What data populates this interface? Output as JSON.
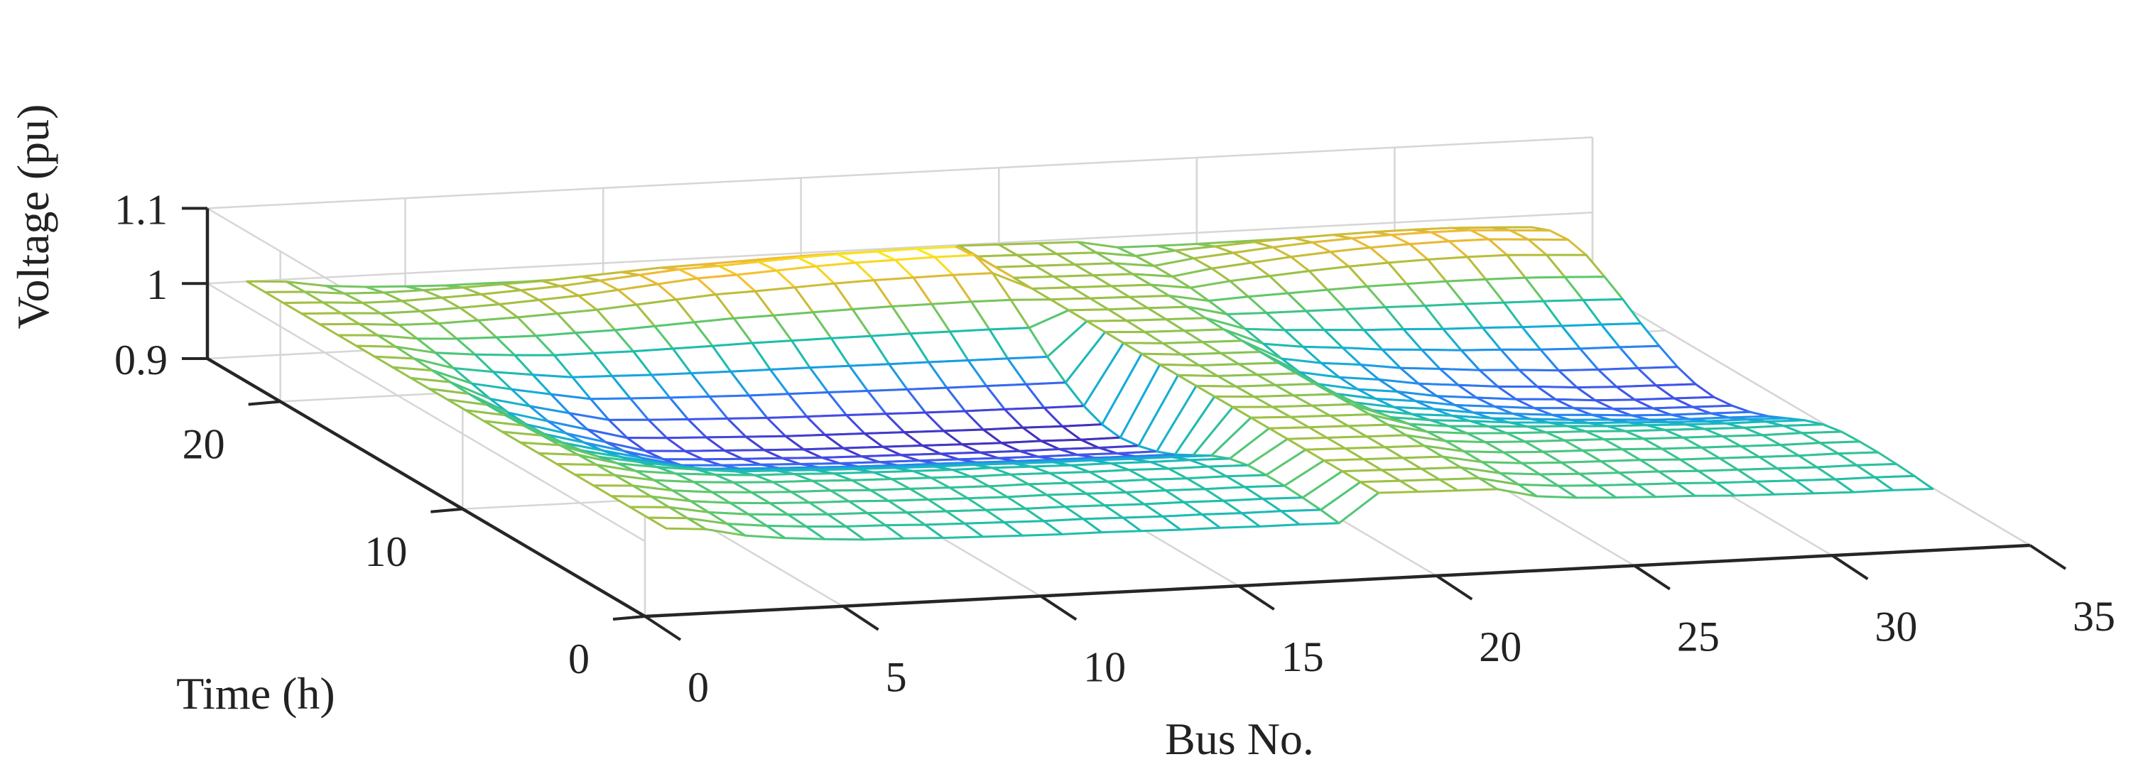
{
  "chart_data": {
    "type": "surface",
    "style": "mesh",
    "colormap": "parula",
    "grid": true,
    "xlabel": "Bus No.",
    "ylabel": "Time (h)",
    "zlabel": "Voltage (pu)",
    "xlim": [
      0,
      35
    ],
    "ylim": [
      0,
      24
    ],
    "zlim": [
      0.9,
      1.1
    ],
    "xticks": [
      "0",
      "5",
      "10",
      "15",
      "20",
      "25",
      "30",
      "35"
    ],
    "yticks": [
      "0",
      "10",
      "20"
    ],
    "zticks": [
      "0.9",
      "1",
      "1.1"
    ],
    "x": [
      1,
      33
    ],
    "y": [
      1,
      24
    ],
    "z_description_note": "",
    "bus_profile_offpeak": [
      1.0,
      0.997,
      0.988,
      0.983,
      0.98,
      0.978,
      0.977,
      0.975,
      0.974,
      0.973,
      0.972,
      0.972,
      0.971,
      0.97,
      0.97,
      0.969,
      0.969,
      0.968,
      0.999,
      0.998,
      0.997,
      0.996,
      0.986,
      0.982,
      0.98,
      0.979,
      0.978,
      0.976,
      0.975,
      0.974,
      0.973,
      0.973,
      0.972
    ],
    "bus_profile_peak": [
      1.0,
      0.99,
      0.96,
      0.945,
      0.93,
      0.915,
      0.912,
      0.91,
      0.908,
      0.906,
      0.905,
      0.904,
      0.903,
      0.902,
      0.901,
      0.901,
      0.9,
      0.9,
      0.998,
      0.994,
      0.993,
      0.992,
      0.96,
      0.95,
      0.944,
      0.935,
      0.93,
      0.925,
      0.922,
      0.918,
      0.916,
      0.915,
      0.914
    ],
    "bus_profile_evening": [
      1.0,
      0.998,
      0.995,
      0.995,
      0.997,
      0.999,
      1.002,
      1.005,
      1.01,
      1.015,
      1.02,
      1.022,
      1.025,
      1.028,
      1.03,
      1.031,
      1.032,
      1.032,
      0.999,
      0.998,
      0.997,
      0.996,
      0.99,
      0.998,
      1.003,
      1.008,
      1.012,
      1.015,
      1.017,
      1.018,
      1.018,
      1.015,
      1.012
    ],
    "hour_weights_peak": [
      0.1,
      0.05,
      0.02,
      0.0,
      0.0,
      0.02,
      0.1,
      0.25,
      0.45,
      0.65,
      0.8,
      0.9,
      0.95,
      0.9,
      0.75,
      0.55,
      0.35,
      0.18,
      0.08,
      0.0,
      0.0,
      0.0,
      0.0,
      0.05
    ],
    "hour_weights_evening": [
      0.0,
      0.0,
      0.0,
      0.0,
      0.0,
      0.0,
      0.0,
      0.0,
      0.0,
      0.0,
      0.0,
      0.0,
      0.0,
      0.0,
      0.0,
      0.05,
      0.15,
      0.35,
      0.6,
      0.85,
      1.0,
      0.95,
      0.7,
      0.3
    ]
  }
}
